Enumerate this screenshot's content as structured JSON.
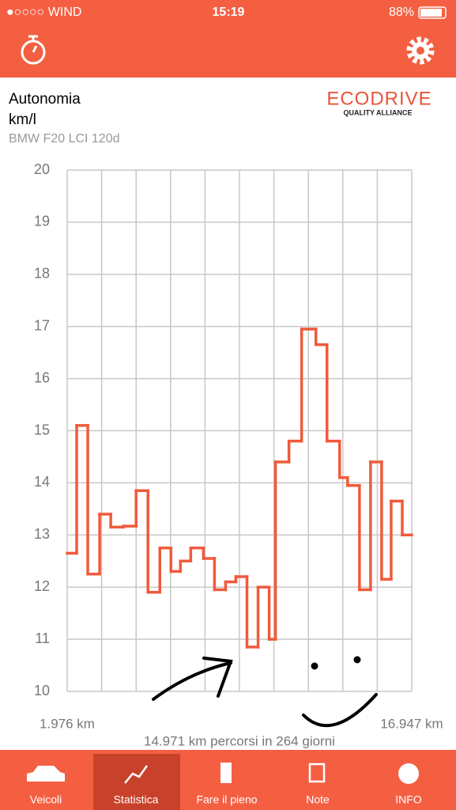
{
  "status_bar": {
    "carrier": "●○○○○ WIND",
    "time": "15:19",
    "battery": "88%"
  },
  "header": {
    "title": "Autonomia",
    "unit": "km/l",
    "vehicle": "BMW F20 LCI 120d",
    "logo": "ECODRIVE",
    "logo_sub": "QUALITY ALLIANCE"
  },
  "chart_data": {
    "type": "step",
    "color": "#f05a3c",
    "grid": true,
    "xlim": [
      1976,
      16947
    ],
    "xticks": [
      {
        "value": 1976,
        "label": "1.976 km"
      },
      {
        "value": 16947,
        "label": "16.947 km"
      }
    ],
    "ylim": [
      10,
      20
    ],
    "yticks": [
      10,
      11,
      12,
      13,
      14,
      15,
      16,
      17,
      18,
      19,
      20
    ],
    "x": [
      1976,
      2389,
      2871,
      3387,
      3869,
      4420,
      4970,
      5486,
      6003,
      6484,
      6897,
      7345,
      7896,
      8377,
      8859,
      9307,
      9788,
      10270,
      10752,
      11027,
      11612,
      12163,
      12783,
      13264,
      13815,
      14159,
      14676,
      15157,
      15639,
      16052,
      16534
    ],
    "values": [
      12.65,
      15.1,
      12.25,
      13.4,
      13.15,
      13.17,
      13.85,
      11.9,
      12.75,
      12.3,
      12.5,
      12.75,
      12.55,
      11.95,
      12.1,
      12.2,
      10.85,
      12.0,
      11.0,
      14.4,
      14.8,
      16.95,
      16.65,
      14.8,
      14.1,
      13.95,
      11.95,
      14.4,
      12.15,
      13.65,
      13.0
    ],
    "footer": "14.971 km percorsi in 264 giorni"
  },
  "tabs": [
    "Veicoli",
    "Statistica",
    "Fare il pieno",
    "Note",
    "INFO"
  ]
}
